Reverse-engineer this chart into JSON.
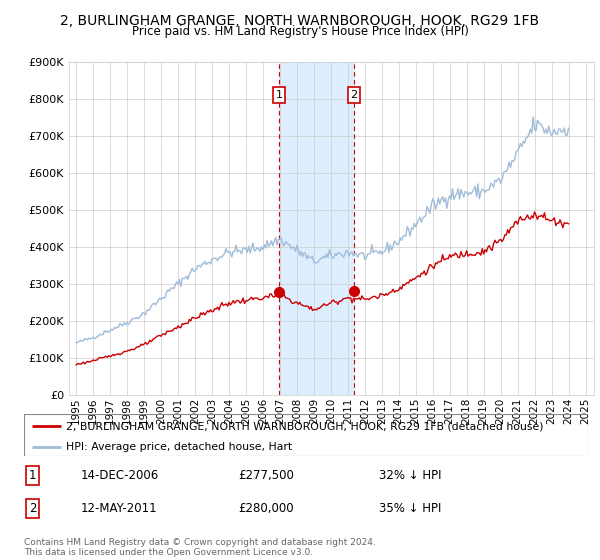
{
  "title": "2, BURLINGHAM GRANGE, NORTH WARNBOROUGH, HOOK, RG29 1FB",
  "subtitle": "Price paid vs. HM Land Registry's House Price Index (HPI)",
  "property_label": "2, BURLINGHAM GRANGE, NORTH WARNBOROUGH, HOOK, RG29 1FB (detached house)",
  "hpi_label": "HPI: Average price, detached house, Hart",
  "transaction1_date": "14-DEC-2006",
  "transaction1_price": 277500,
  "transaction1_pct": "32% ↓ HPI",
  "transaction2_date": "12-MAY-2011",
  "transaction2_price": 280000,
  "transaction2_pct": "35% ↓ HPI",
  "copyright": "Contains HM Land Registry data © Crown copyright and database right 2024.\nThis data is licensed under the Open Government Licence v3.0.",
  "hpi_color": "#a0bcd8",
  "property_color": "#cc0000",
  "shading_color": "#ddeeff",
  "dashed_line_color": "#cc0000",
  "ylim": [
    0,
    900000
  ],
  "yticks": [
    0,
    100000,
    200000,
    300000,
    400000,
    500000,
    600000,
    700000,
    800000,
    900000
  ],
  "transaction1_x": 2006.958,
  "transaction2_x": 2011.37
}
